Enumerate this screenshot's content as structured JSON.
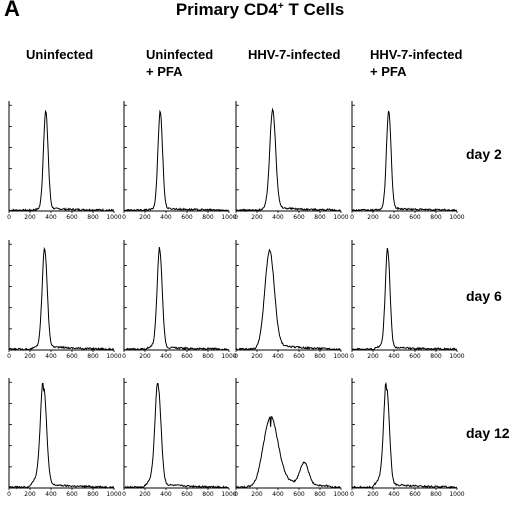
{
  "figure": {
    "panel_letter": "A",
    "title_main": "Primary CD4",
    "title_sup": "+",
    "title_rest": " T Cells"
  },
  "columns": [
    {
      "line1": "Uninfected",
      "line2": ""
    },
    {
      "line1": "Uninfected",
      "line2": "+ PFA"
    },
    {
      "line1": "HHV-7-infected",
      "line2": ""
    },
    {
      "line1": "HHV-7-infected",
      "line2": "+ PFA"
    }
  ],
  "rows": [
    "day 2",
    "day 6",
    "day 12"
  ],
  "chart_data": {
    "type": "line",
    "x_ticks": [
      "0",
      "200",
      "400",
      "600",
      "800",
      "1000"
    ],
    "xlim": [
      0,
      1000
    ],
    "grid": false,
    "panels": [
      {
        "row": "day 2",
        "column": "Uninfected",
        "peaks": [
          {
            "x": 350,
            "h": 0.88,
            "w": 22
          }
        ],
        "shoulder_left": 0.02,
        "tail": 0.02
      },
      {
        "row": "day 2",
        "column": "Uninfected + PFA",
        "peaks": [
          {
            "x": 345,
            "h": 0.88,
            "w": 22
          }
        ],
        "shoulder_left": 0.02,
        "tail": 0.02
      },
      {
        "row": "day 2",
        "column": "HHV-7-infected",
        "peaks": [
          {
            "x": 350,
            "h": 0.88,
            "w": 28
          }
        ],
        "shoulder_left": 0.04,
        "tail": 0.03
      },
      {
        "row": "day 2",
        "column": "HHV-7-infected + PFA",
        "peaks": [
          {
            "x": 350,
            "h": 0.88,
            "w": 22
          }
        ],
        "shoulder_left": 0.02,
        "tail": 0.02
      },
      {
        "row": "day 6",
        "column": "Uninfected",
        "peaks": [
          {
            "x": 340,
            "h": 0.88,
            "w": 24
          }
        ],
        "shoulder_left": 0.05,
        "tail": 0.03
      },
      {
        "row": "day 6",
        "column": "Uninfected + PFA",
        "peaks": [
          {
            "x": 340,
            "h": 0.88,
            "w": 24
          }
        ],
        "shoulder_left": 0.06,
        "tail": 0.02
      },
      {
        "row": "day 6",
        "column": "HHV-7-infected",
        "peaks": [
          {
            "x": 320,
            "h": 0.85,
            "w": 45
          }
        ],
        "shoulder_left": 0.05,
        "tail": 0.05
      },
      {
        "row": "day 6",
        "column": "HHV-7-infected + PFA",
        "peaks": [
          {
            "x": 340,
            "h": 0.88,
            "w": 22
          }
        ],
        "shoulder_left": 0.06,
        "tail": 0.02
      },
      {
        "row": "day 12",
        "column": "Uninfected",
        "peaks": [
          {
            "x": 330,
            "h": 0.88,
            "w": 28
          }
        ],
        "shoulder_left": 0.18,
        "tail": 0.03
      },
      {
        "row": "day 12",
        "column": "Uninfected + PFA",
        "peaks": [
          {
            "x": 325,
            "h": 0.88,
            "w": 28
          }
        ],
        "shoulder_left": 0.14,
        "tail": 0.03
      },
      {
        "row": "day 12",
        "column": "HHV-7-infected",
        "peaks": [
          {
            "x": 330,
            "h": 0.55,
            "w": 70
          },
          {
            "x": 650,
            "h": 0.2,
            "w": 40
          }
        ],
        "shoulder_left": 0.1,
        "tail": 0.1
      },
      {
        "row": "day 12",
        "column": "HHV-7-infected + PFA",
        "peaks": [
          {
            "x": 330,
            "h": 0.88,
            "w": 26
          }
        ],
        "shoulder_left": 0.15,
        "tail": 0.03
      }
    ]
  }
}
